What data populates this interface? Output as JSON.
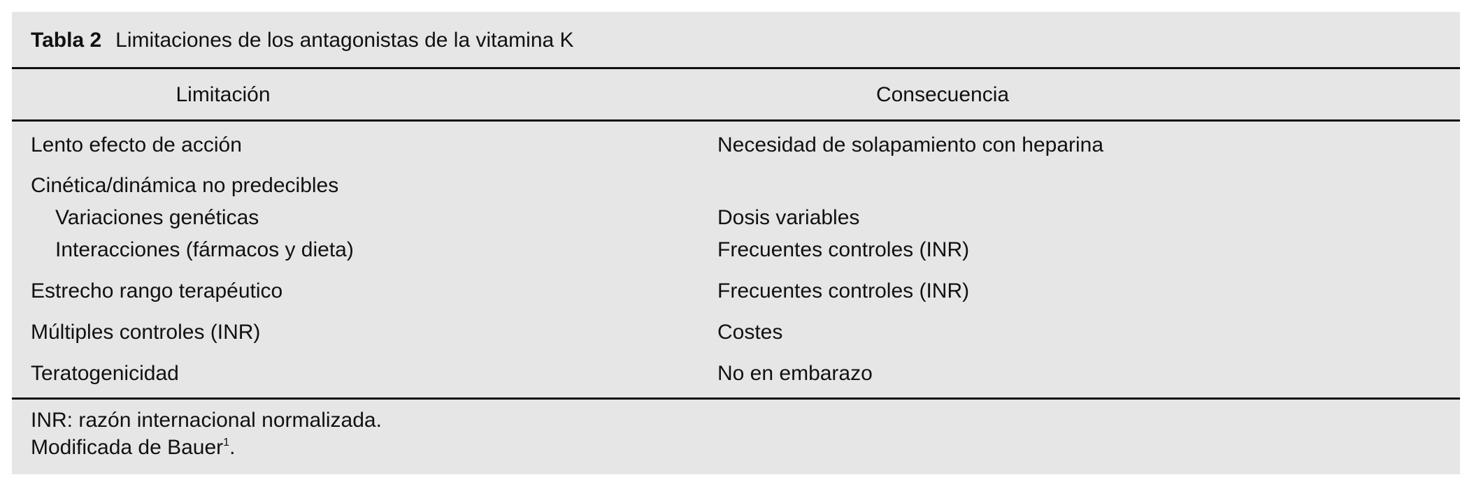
{
  "table": {
    "label": "Tabla 2",
    "title": "Limitaciones de los antagonistas de la vitamina K",
    "headers": [
      "Limitación",
      "Consecuencia"
    ],
    "rows": [
      {
        "limitation": "Lento efecto de acción",
        "consequence": "Necesidad de solapamiento con heparina"
      },
      {
        "limitation": "Cinética/dinámica no predecibles",
        "consequence": ""
      },
      {
        "limitation": "Variaciones genéticas",
        "consequence": "Dosis variables"
      },
      {
        "limitation": "Interacciones (fármacos y dieta)",
        "consequence": "Frecuentes controles (INR)"
      },
      {
        "limitation": "Estrecho rango terapéutico",
        "consequence": "Frecuentes controles (INR)"
      },
      {
        "limitation": "Múltiples controles (INR)",
        "consequence": "Costes"
      },
      {
        "limitation": "Teratogenicidad",
        "consequence": "No en embarazo"
      }
    ],
    "footnotes": {
      "abbrev": "INR: razón internacional normalizada.",
      "source": "Modificada de Bauer",
      "source_ref": "1",
      "source_end": "."
    }
  }
}
